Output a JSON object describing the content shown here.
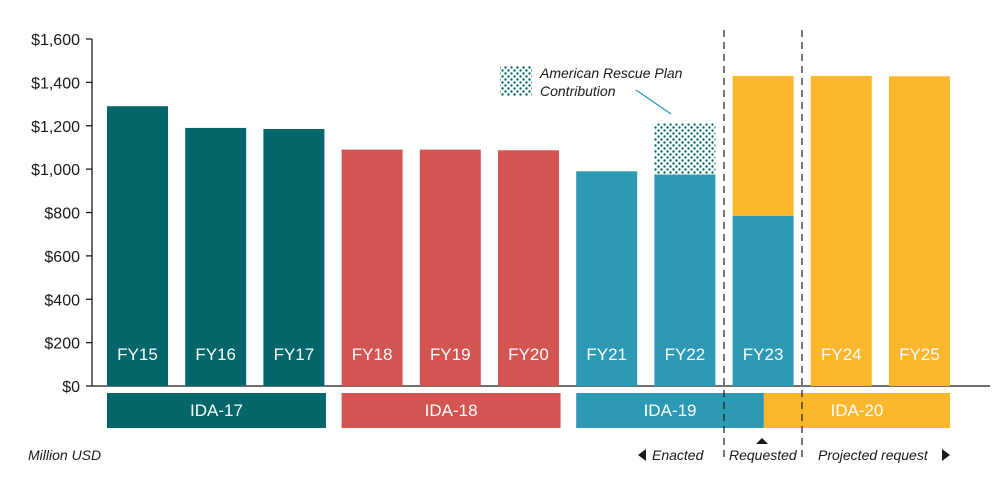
{
  "chart_data": {
    "type": "bar",
    "categories": [
      "FY15",
      "FY16",
      "FY17",
      "FY18",
      "FY19",
      "FY20",
      "FY21",
      "FY22",
      "FY23",
      "FY24",
      "FY25"
    ],
    "series": [
      {
        "name": "",
        "values": [
          1290,
          1190,
          1185,
          1090,
          1090,
          1087,
          990,
          975,
          785,
          0,
          0
        ]
      },
      {
        "name": "American Rescue Plan Contribution",
        "values": [
          0,
          0,
          0,
          0,
          0,
          0,
          0,
          235,
          0,
          0,
          0
        ]
      },
      {
        "name": "",
        "values": [
          0,
          0,
          0,
          0,
          0,
          0,
          0,
          0,
          645,
          1430,
          1428
        ]
      }
    ],
    "bar_groups": [
      "IDA-17",
      "IDA-17",
      "IDA-17",
      "IDA-18",
      "IDA-18",
      "IDA-18",
      "IDA-19",
      "IDA-19",
      "IDA-19",
      "IDA-20",
      "IDA-20"
    ],
    "ylim": [
      0,
      1600
    ],
    "yticks": [
      0,
      200,
      400,
      600,
      800,
      1000,
      1200,
      1400,
      1600
    ],
    "ytick_labels": [
      "$0",
      "$200",
      "$400",
      "$600",
      "$800",
      "$1,000",
      "$1,200",
      "$1,400",
      "$1,600"
    ],
    "unit_label": "Million USD",
    "annotation": {
      "line1": "American Rescue Plan",
      "line2": "Contribution"
    },
    "replenishments": [
      {
        "label": "IDA-17",
        "color": "#02666A",
        "from": 0,
        "to": 2.8
      },
      {
        "label": "IDA-18",
        "color": "#D25552",
        "from": 3,
        "to": 5.8
      },
      {
        "label": "IDA-19",
        "color": "#2D99B4",
        "from": 6,
        "to": 8.4
      },
      {
        "label": "IDA-20",
        "color": "#FDB72D",
        "from": 8.4,
        "to": 11
      }
    ],
    "status": {
      "enacted": "Enacted",
      "requested": "Requested",
      "projected": "Projected request"
    },
    "colors": {
      "IDA-17": "#02666A",
      "IDA-18": "#D25552",
      "IDA-19": "#2D99B4",
      "IDA-20": "#FDB72D",
      "ARP": "#02666A"
    }
  }
}
